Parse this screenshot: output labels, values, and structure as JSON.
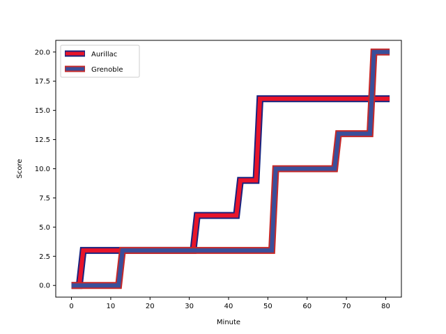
{
  "chart_data": {
    "type": "line",
    "title": "",
    "xlabel": "Minute",
    "ylabel": "Score",
    "xlim": [
      -4,
      84
    ],
    "ylim": [
      -1,
      21
    ],
    "xticks": [
      0,
      10,
      20,
      30,
      40,
      50,
      60,
      70,
      80
    ],
    "yticks": [
      0.0,
      2.5,
      5.0,
      7.5,
      10.0,
      12.5,
      15.0,
      17.5,
      20.0
    ],
    "xtick_labels": [
      "0",
      "10",
      "20",
      "30",
      "40",
      "50",
      "60",
      "70",
      "80"
    ],
    "ytick_labels": [
      "0.0",
      "2.5",
      "5.0",
      "7.5",
      "10.0",
      "12.5",
      "15.0",
      "17.5",
      "20.0"
    ],
    "grid": false,
    "legend_position": "top-left",
    "series": [
      {
        "name": "Aurillac",
        "fill_color": "#e8142a",
        "edge_color": "#1a237e",
        "points": [
          [
            0,
            0
          ],
          [
            2,
            0
          ],
          [
            3,
            3
          ],
          [
            31,
            3
          ],
          [
            32,
            6
          ],
          [
            42,
            6
          ],
          [
            43,
            9
          ],
          [
            47,
            9
          ],
          [
            48,
            16
          ],
          [
            81,
            16
          ]
        ]
      },
      {
        "name": "Grenoble",
        "fill_color": "#3a4f9a",
        "edge_color": "#c62828",
        "points": [
          [
            0,
            0
          ],
          [
            12,
            0
          ],
          [
            13,
            3
          ],
          [
            51,
            3
          ],
          [
            52,
            10
          ],
          [
            67,
            10
          ],
          [
            68,
            13
          ],
          [
            76,
            13
          ],
          [
            77,
            20
          ],
          [
            81,
            20
          ]
        ]
      }
    ]
  }
}
